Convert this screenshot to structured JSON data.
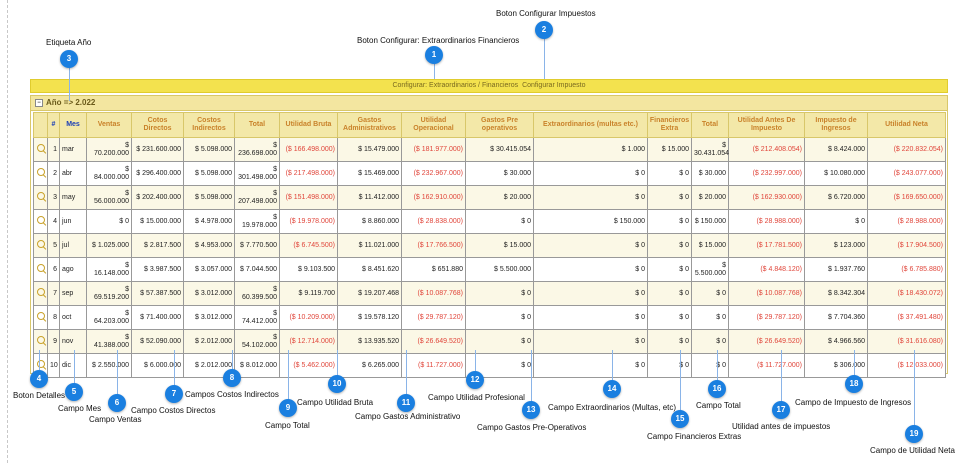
{
  "toolbar": {
    "configurar_extra": "Configurar: Extraordinarios / Financieros",
    "configurar_imp": "Configurar Impuesto",
    "sep": " "
  },
  "year_label": "Año => 2.022",
  "headers": [
    "",
    "#",
    "Mes",
    "Ventas",
    "Cotos Directos",
    "Costos Indirectos",
    "Total",
    "Utilidad Bruta",
    "Gastos Administrativos",
    "Utilidad Operacional",
    "Gastos Pre operativos",
    "Extraordinarios (multas etc.)",
    "Financieros Extra",
    "Total",
    "Utilidad Antes De Impuesto",
    "Impuesto de Ingresos",
    "Utilidad Neta"
  ],
  "rows": [
    [
      "1",
      "mar",
      "$ 70.200.000",
      "$ 231.600.000",
      "$ 5.098.000",
      "$ 236.698.000",
      "($ 166.498.000)",
      "$ 15.479.000",
      "($ 181.977.000)",
      "$ 30.415.054",
      "$ 1.000",
      "$ 15.000",
      "$ 30.431.054",
      "($ 212.408.054)",
      "$ 8.424.000",
      "($ 220.832.054)"
    ],
    [
      "2",
      "abr",
      "$ 84.000.000",
      "$ 296.400.000",
      "$ 5.098.000",
      "$ 301.498.000",
      "($ 217.498.000)",
      "$ 15.469.000",
      "($ 232.967.000)",
      "$ 30.000",
      "$ 0",
      "$ 0",
      "$ 30.000",
      "($ 232.997.000)",
      "$ 10.080.000",
      "($ 243.077.000)"
    ],
    [
      "3",
      "may",
      "$ 56.000.000",
      "$ 202.400.000",
      "$ 5.098.000",
      "$ 207.498.000",
      "($ 151.498.000)",
      "$ 11.412.000",
      "($ 162.910.000)",
      "$ 20.000",
      "$ 0",
      "$ 0",
      "$ 20.000",
      "($ 162.930.000)",
      "$ 6.720.000",
      "($ 169.650.000)"
    ],
    [
      "4",
      "jun",
      "$ 0",
      "$ 15.000.000",
      "$ 4.978.000",
      "$ 19.978.000",
      "($ 19.978.000)",
      "$ 8.860.000",
      "($ 28.838.000)",
      "$ 0",
      "$ 150.000",
      "$ 0",
      "$ 150.000",
      "($ 28.988.000)",
      "$ 0",
      "($ 28.988.000)"
    ],
    [
      "5",
      "jul",
      "$ 1.025.000",
      "$ 2.817.500",
      "$ 4.953.000",
      "$ 7.770.500",
      "($ 6.745.500)",
      "$ 11.021.000",
      "($ 17.766.500)",
      "$ 15.000",
      "$ 0",
      "$ 0",
      "$ 15.000",
      "($ 17.781.500)",
      "$ 123.000",
      "($ 17.904.500)"
    ],
    [
      "6",
      "ago",
      "$ 16.148.000",
      "$ 3.987.500",
      "$ 3.057.000",
      "$ 7.044.500",
      "$ 9.103.500",
      "$ 8.451.620",
      "$ 651.880",
      "$ 5.500.000",
      "$ 0",
      "$ 0",
      "$ 5.500.000",
      "($ 4.848.120)",
      "$ 1.937.760",
      "($ 6.785.880)"
    ],
    [
      "7",
      "sep",
      "$ 69.519.200",
      "$ 57.387.500",
      "$ 3.012.000",
      "$ 60.399.500",
      "$ 9.119.700",
      "$ 19.207.468",
      "($ 10.087.768)",
      "$ 0",
      "$ 0",
      "$ 0",
      "$ 0",
      "($ 10.087.768)",
      "$ 8.342.304",
      "($ 18.430.072)"
    ],
    [
      "8",
      "oct",
      "$ 64.203.000",
      "$ 71.400.000",
      "$ 3.012.000",
      "$ 74.412.000",
      "($ 10.209.000)",
      "$ 19.578.120",
      "($ 29.787.120)",
      "$ 0",
      "$ 0",
      "$ 0",
      "$ 0",
      "($ 29.787.120)",
      "$ 7.704.360",
      "($ 37.491.480)"
    ],
    [
      "9",
      "nov",
      "$ 41.388.000",
      "$ 52.090.000",
      "$ 2.012.000",
      "$ 54.102.000",
      "($ 12.714.000)",
      "$ 13.935.520",
      "($ 26.649.520)",
      "$ 0",
      "$ 0",
      "$ 0",
      "$ 0",
      "($ 26.649.520)",
      "$ 4.966.560",
      "($ 31.616.080)"
    ],
    [
      "10",
      "dic",
      "$ 2.550.000",
      "$ 6.000.000",
      "$ 2.012.000",
      "$ 8.012.000",
      "($ 5.462.000)",
      "$ 6.265.000",
      "($ 11.727.000)",
      "$ 0",
      "$ 0",
      "$ 0",
      "$ 0",
      "($ 11.727.000)",
      "$ 306.000",
      "($ 12.033.000)"
    ]
  ],
  "annotations": [
    {
      "n": "1",
      "label": "Boton Configurar: Extraordinarios Financieros"
    },
    {
      "n": "2",
      "label": "Boton Configurar Impuestos"
    },
    {
      "n": "3",
      "label": "Etiqueta Año"
    },
    {
      "n": "4",
      "label": "Boton Detalles"
    },
    {
      "n": "5",
      "label": "Campo Mes"
    },
    {
      "n": "6",
      "label": "Campo Ventas"
    },
    {
      "n": "7",
      "label": "Campo Costos Directos"
    },
    {
      "n": "8",
      "label": "Campos Costos Indirectos"
    },
    {
      "n": "9",
      "label": "Campo Total"
    },
    {
      "n": "10",
      "label": "Campo Utilidad Bruta"
    },
    {
      "n": "11",
      "label": "Campo Gastos Administrativo"
    },
    {
      "n": "12",
      "label": "Campo Utilidad Profesional"
    },
    {
      "n": "13",
      "label": "Campo Gastos Pre-Operativos"
    },
    {
      "n": "14",
      "label": "Campo Extraordinarios (Multas, etc)"
    },
    {
      "n": "15",
      "label": "Campo Financieros Extras"
    },
    {
      "n": "16",
      "label": "Campo Total"
    },
    {
      "n": "17",
      "label": "Utilidad antes de impuestos"
    },
    {
      "n": "18",
      "label": "Campo de Impuesto de Ingresos"
    },
    {
      "n": "19",
      "label": "Campo de Utilidad Neta"
    }
  ],
  "colors": {
    "accent": "#1a7fe0",
    "negative": "#e0453a",
    "header_text": "#c9822a",
    "header_bg": "#f3e8a8",
    "toolbar": "#f3e24e"
  },
  "icons": {
    "details": "magnifier-icon",
    "collapse": "minus-box-icon"
  }
}
